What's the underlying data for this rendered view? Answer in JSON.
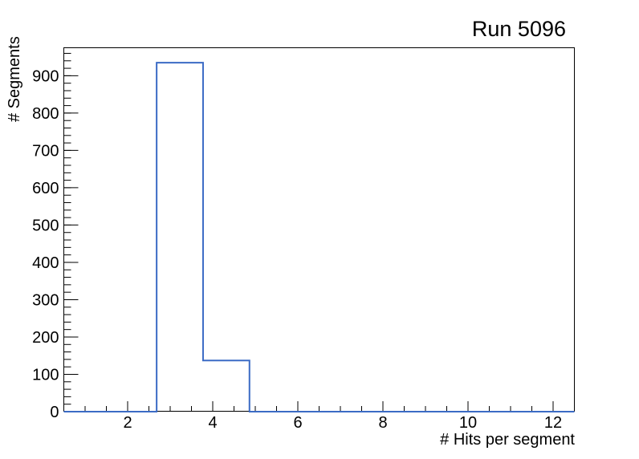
{
  "chart_data": {
    "type": "histogram",
    "style": "step-outline",
    "title": "Run 5096",
    "xlabel": "# Hits per segment",
    "ylabel": "# Segments",
    "xlim": [
      0.5,
      12.5
    ],
    "ylim": [
      0,
      975
    ],
    "grid": false,
    "legend": false,
    "bin_edges": [
      0.5,
      1.5909,
      2.6818,
      3.7727,
      4.8636,
      5.9545,
      7.0455,
      8.1364,
      9.2273,
      10.3182,
      11.4091,
      12.5
    ],
    "bin_counts": [
      0,
      0,
      935,
      137,
      0,
      0,
      0,
      0,
      0,
      0,
      0
    ],
    "x_major_ticks": [
      2,
      4,
      6,
      8,
      10,
      12
    ],
    "x_minor_step": 0.5,
    "y_major_ticks": [
      0,
      100,
      200,
      300,
      400,
      500,
      600,
      700,
      800,
      900
    ],
    "y_minor_step": 20,
    "line_color": "#3b6bc5",
    "axis_color": "#000000",
    "background_color": "#ffffff"
  }
}
